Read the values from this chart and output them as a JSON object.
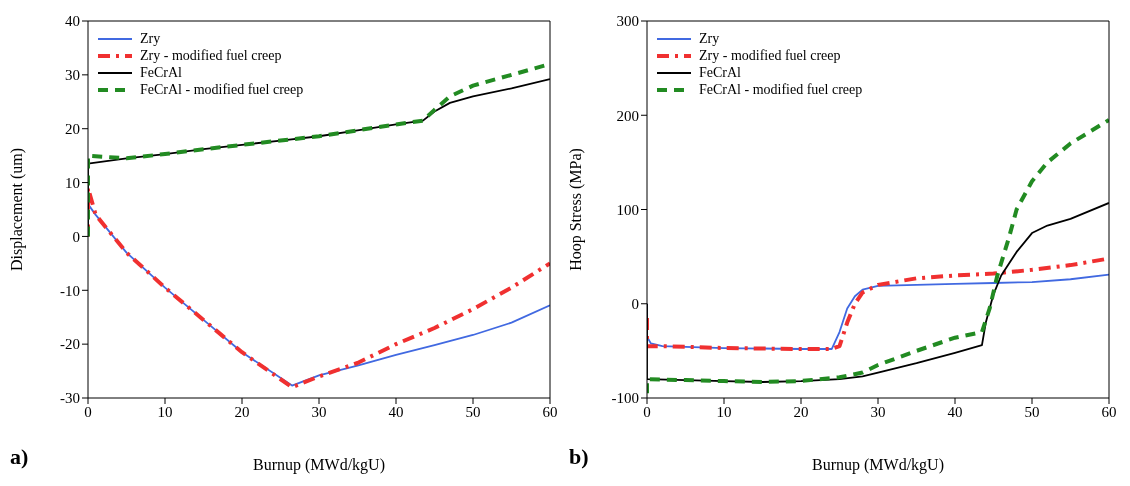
{
  "chart_data": [
    {
      "type": "line",
      "xlabel": "Burnup (MWd/kgU)",
      "ylabel": "Displacement (um)",
      "annotations": [
        "a)"
      ],
      "xlim": [
        0,
        60
      ],
      "xticks": [
        0,
        10,
        20,
        30,
        40,
        50,
        60
      ],
      "ylim": [
        -30,
        40
      ],
      "yticks": [
        -30,
        -20,
        -10,
        0,
        10,
        20,
        30,
        40
      ],
      "grid": false,
      "legend": "top left",
      "marker": "none",
      "series": [
        {
          "name": "Zry",
          "color": "#4169e1",
          "line_style": "solid",
          "x": [
            0,
            0,
            1,
            5,
            10,
            15,
            20,
            26.5,
            30,
            35,
            40,
            45,
            50,
            55,
            60
          ],
          "values": [
            0,
            6,
            4,
            -3,
            -9.5,
            -15.5,
            -21.5,
            -27.7,
            -25.8,
            -24,
            -22,
            -20.2,
            -18.3,
            -16,
            -12.8
          ]
        },
        {
          "name": "Zry - modified fuel creep",
          "color": "#f03030",
          "line_style": "dashdot",
          "x": [
            0,
            0,
            1,
            5,
            10,
            15,
            20,
            26.5,
            30,
            35,
            40,
            45,
            50,
            55,
            60
          ],
          "values": [
            0,
            9,
            4,
            -3,
            -9.5,
            -15.5,
            -21.5,
            -28,
            -26,
            -23.5,
            -20,
            -17,
            -13.5,
            -9.5,
            -5
          ]
        },
        {
          "name": "FeCrAl",
          "color": "#000000",
          "line_style": "solid",
          "x": [
            0,
            0,
            5,
            10,
            15,
            20,
            25,
            30,
            35,
            40,
            43.5,
            45,
            47,
            50,
            55,
            60
          ],
          "values": [
            0,
            13.5,
            14.5,
            15.3,
            16.2,
            17,
            17.8,
            18.6,
            19.7,
            20.8,
            21.5,
            23.2,
            24.8,
            26,
            27.5,
            29.2
          ]
        },
        {
          "name": "FeCrAl - modified fuel creep",
          "color": "#228b22",
          "line_style": "dashed",
          "x": [
            0,
            0,
            5,
            10,
            15,
            20,
            25,
            30,
            35,
            40,
            43.5,
            45,
            47,
            50,
            55,
            60
          ],
          "values": [
            0,
            15,
            14.5,
            15.3,
            16.2,
            17,
            17.8,
            18.6,
            19.7,
            20.8,
            21.5,
            23.5,
            26,
            28,
            30,
            32
          ]
        }
      ]
    },
    {
      "type": "line",
      "xlabel": "Burnup (MWd/kgU)",
      "ylabel": "Hoop Stress (MPa)",
      "annotations": [
        "b)"
      ],
      "xlim": [
        0,
        60
      ],
      "xticks": [
        0,
        10,
        20,
        30,
        40,
        50,
        60
      ],
      "ylim": [
        -100,
        300
      ],
      "yticks": [
        -100,
        0,
        100,
        200,
        300
      ],
      "grid": false,
      "legend": "top left",
      "marker": "none",
      "series": [
        {
          "name": "Zry",
          "color": "#4169e1",
          "line_style": "solid",
          "x": [
            0,
            0,
            0.5,
            2,
            10,
            20,
            24,
            25,
            26,
            27,
            28,
            30,
            35,
            40,
            45,
            50,
            55,
            60
          ],
          "values": [
            0,
            -35,
            -42,
            -45,
            -47,
            -48,
            -48,
            -30,
            -5,
            8,
            15,
            19,
            20,
            21,
            22,
            23,
            26,
            31
          ]
        },
        {
          "name": "Zry - modified fuel creep",
          "color": "#f03030",
          "line_style": "dashdot",
          "x": [
            0,
            0,
            2,
            10,
            20,
            24,
            25,
            26,
            27,
            28,
            30,
            35,
            40,
            45,
            50,
            55,
            60
          ],
          "values": [
            -15,
            -45,
            -45,
            -47,
            -48,
            -48,
            -45,
            -20,
            0,
            12,
            20,
            27,
            30,
            32,
            36,
            41,
            48
          ]
        },
        {
          "name": "FeCrAl",
          "color": "#000000",
          "line_style": "solid",
          "x": [
            0,
            0,
            5,
            10,
            15,
            20,
            25,
            28,
            30,
            35,
            40,
            43.5,
            44,
            45,
            46,
            48,
            50,
            52,
            55,
            60
          ],
          "values": [
            0,
            -80,
            -81,
            -82,
            -83,
            -82,
            -80,
            -77,
            -73,
            -63,
            -52,
            -44,
            -20,
            10,
            30,
            55,
            75,
            83,
            90,
            107
          ]
        },
        {
          "name": "FeCrAl - modified fuel creep",
          "color": "#228b22",
          "line_style": "dashed",
          "x": [
            0,
            0,
            5,
            10,
            15,
            20,
            25,
            28,
            30,
            35,
            40,
            43.5,
            44.5,
            45.5,
            47,
            48,
            50,
            52,
            55,
            60
          ],
          "values": [
            -95,
            -80,
            -81,
            -82,
            -83,
            -82,
            -78,
            -73,
            -65,
            -50,
            -36,
            -30,
            -5,
            30,
            70,
            100,
            130,
            150,
            170,
            195
          ]
        }
      ]
    }
  ]
}
